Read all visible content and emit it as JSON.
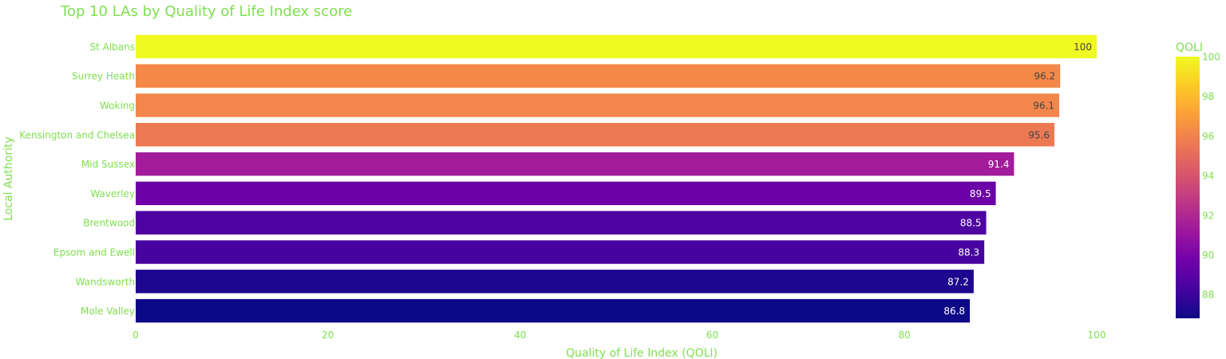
{
  "chart_data": {
    "type": "bar",
    "orientation": "horizontal",
    "title": "Top 10 LAs by Quality of Life Index score",
    "xlabel": "Quality of Life Index (QOLI)",
    "ylabel": "Local Authority",
    "xlim": [
      0,
      105
    ],
    "xticks": [
      0,
      20,
      40,
      60,
      80,
      100
    ],
    "categories": [
      "St Albans",
      "Surrey Heath",
      "Woking",
      "Kensington and Chelsea",
      "Mid Sussex",
      "Waverley",
      "Brentwood",
      "Epsom and Ewell",
      "Wandsworth",
      "Mole Valley"
    ],
    "values": [
      100,
      96.2,
      96.1,
      95.6,
      91.4,
      89.5,
      88.5,
      88.3,
      87.2,
      86.8
    ],
    "data_labels": [
      "100",
      "96.2",
      "96.1",
      "95.6",
      "91.4",
      "89.5",
      "88.5",
      "88.3",
      "87.2",
      "86.8"
    ],
    "colorbar": {
      "title": "QOLI",
      "range": [
        86.8,
        100
      ],
      "ticks": [
        88,
        90,
        92,
        94,
        96,
        98,
        100
      ],
      "colorscale": "plasma"
    },
    "grid": false
  },
  "colors": {
    "text": "#7ee04f",
    "bar_label_dark": "#444444",
    "bar_label_light": "#ffffff"
  }
}
